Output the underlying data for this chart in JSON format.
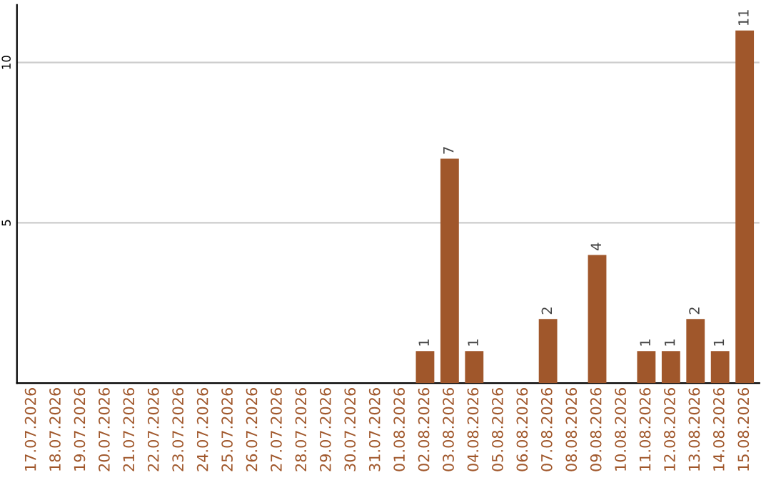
{
  "chart_data": {
    "type": "bar",
    "categories": [
      "17.07.2026",
      "18.07.2026",
      "19.07.2026",
      "20.07.2026",
      "21.07.2026",
      "22.07.2026",
      "23.07.2026",
      "24.07.2026",
      "25.07.2026",
      "26.07.2026",
      "27.07.2026",
      "28.07.2026",
      "29.07.2026",
      "30.07.2026",
      "31.07.2026",
      "01.08.2026",
      "02.08.2026",
      "03.08.2026",
      "04.08.2026",
      "05.08.2026",
      "06.08.2026",
      "07.08.2026",
      "08.08.2026",
      "09.08.2026",
      "10.08.2026",
      "11.08.2026",
      "12.08.2026",
      "13.08.2026",
      "14.08.2026",
      "15.08.2026"
    ],
    "values": [
      0,
      0,
      0,
      0,
      0,
      0,
      0,
      0,
      0,
      0,
      0,
      0,
      0,
      0,
      0,
      0,
      1,
      7,
      1,
      0,
      0,
      2,
      0,
      4,
      0,
      1,
      1,
      2,
      1,
      11
    ],
    "value_labels": [
      null,
      null,
      null,
      null,
      null,
      null,
      null,
      null,
      null,
      null,
      null,
      null,
      null,
      null,
      null,
      null,
      "1",
      "7",
      "1",
      null,
      null,
      "2",
      null,
      "4",
      null,
      "1",
      "1",
      "2",
      "1",
      "11"
    ],
    "color": "#a0572b",
    "ylim": [
      0,
      11.8
    ],
    "yticks": [
      5,
      10
    ],
    "grid": "y"
  }
}
